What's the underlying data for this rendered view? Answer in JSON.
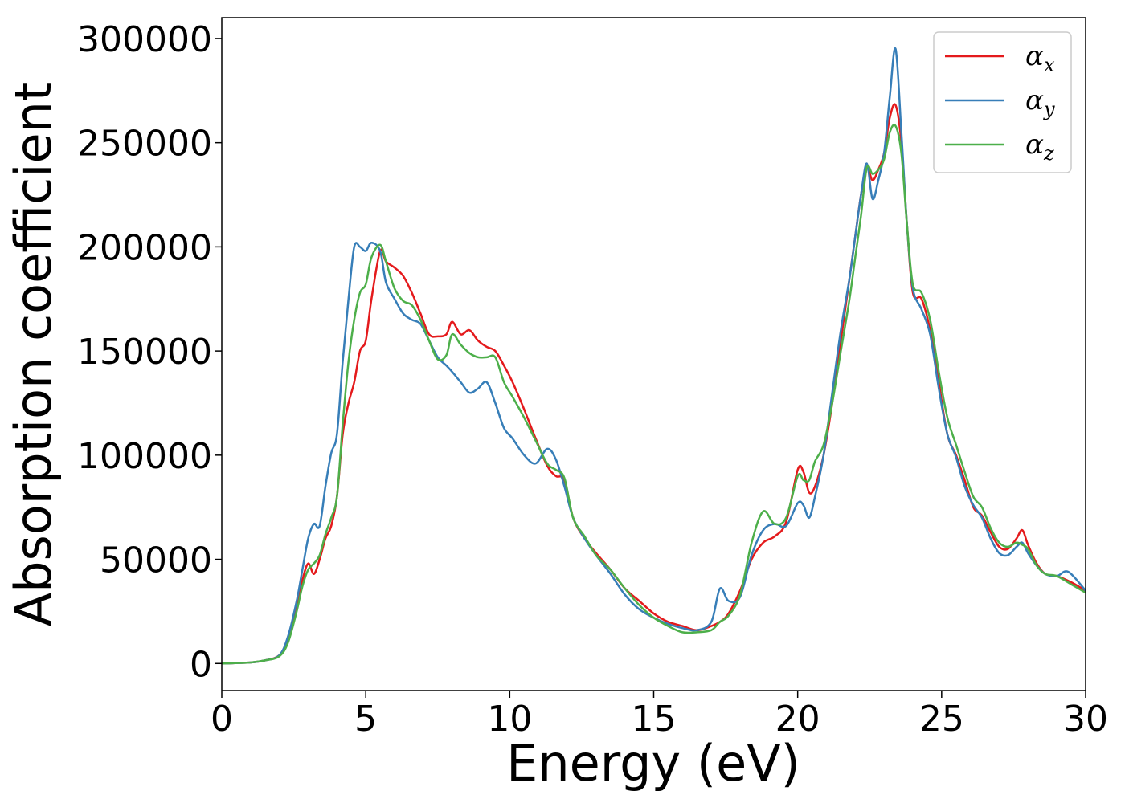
{
  "chart_data": {
    "type": "line",
    "xlabel": "Energy (eV)",
    "ylabel": "Absorption coefficient",
    "xlim": [
      0,
      30
    ],
    "ylim": [
      -13000,
      310000
    ],
    "xticks": [
      0,
      5,
      10,
      15,
      20,
      25,
      30
    ],
    "xtick_labels": [
      "0",
      "5",
      "10",
      "15",
      "20",
      "25",
      "30"
    ],
    "yticks": [
      0,
      50000,
      100000,
      150000,
      200000,
      250000,
      300000
    ],
    "ytick_labels": [
      "0",
      "50000",
      "100000",
      "150000",
      "200000",
      "250000",
      "300000"
    ],
    "grid": false,
    "legend_position": "top-right",
    "series": [
      {
        "name": "α",
        "subscript": "x",
        "color": "#e41a1c",
        "x": [
          0,
          1,
          1.5,
          2,
          2.3,
          2.6,
          2.8,
          3.0,
          3.2,
          3.4,
          3.6,
          3.8,
          4.0,
          4.2,
          4.4,
          4.6,
          4.8,
          5.0,
          5.2,
          5.5,
          5.7,
          6.0,
          6.3,
          6.6,
          6.9,
          7.2,
          7.5,
          7.8,
          8.0,
          8.3,
          8.6,
          8.9,
          9.2,
          9.5,
          9.8,
          10.1,
          10.5,
          10.9,
          11.3,
          11.6,
          11.9,
          12.2,
          12.6,
          13.0,
          13.5,
          14.0,
          14.5,
          15.0,
          15.5,
          16.0,
          16.5,
          17.0,
          17.3,
          17.6,
          18.0,
          18.4,
          18.8,
          19.2,
          19.6,
          20.0,
          20.2,
          20.4,
          20.6,
          20.9,
          21.2,
          21.5,
          21.8,
          22.0,
          22.2,
          22.4,
          22.6,
          22.8,
          23.0,
          23.2,
          23.4,
          23.6,
          23.8,
          24.0,
          24.3,
          24.6,
          24.9,
          25.2,
          25.5,
          25.8,
          26.1,
          26.4,
          26.7,
          27.0,
          27.3,
          27.6,
          27.8,
          28.0,
          28.3,
          28.6,
          29.0,
          29.5,
          30.0
        ],
        "y": [
          0,
          500,
          1500,
          4000,
          12000,
          28000,
          40000,
          48000,
          43000,
          50000,
          60000,
          66000,
          80000,
          110000,
          125000,
          135000,
          150000,
          155000,
          175000,
          198000,
          193000,
          190000,
          186000,
          178000,
          168000,
          158000,
          157000,
          158000,
          164000,
          158000,
          160000,
          155000,
          152000,
          150000,
          143000,
          135000,
          122000,
          108000,
          95000,
          90000,
          88000,
          70000,
          60000,
          53000,
          45000,
          36000,
          30000,
          24000,
          20000,
          18000,
          16000,
          18000,
          20000,
          24000,
          35000,
          50000,
          58000,
          61000,
          68000,
          93000,
          92000,
          82000,
          85000,
          100000,
          125000,
          155000,
          185000,
          205000,
          225000,
          238000,
          232000,
          237000,
          245000,
          262000,
          268000,
          250000,
          210000,
          178000,
          175000,
          160000,
          135000,
          110000,
          100000,
          88000,
          75000,
          71000,
          63000,
          56000,
          55000,
          60000,
          64000,
          57000,
          48000,
          43000,
          42000,
          39000,
          35000
        ]
      },
      {
        "name": "α",
        "subscript": "y",
        "color": "#377eb8",
        "x": [
          0,
          1,
          1.5,
          2,
          2.3,
          2.6,
          2.8,
          3.0,
          3.2,
          3.4,
          3.6,
          3.8,
          4.0,
          4.2,
          4.4,
          4.6,
          4.8,
          5.0,
          5.2,
          5.5,
          5.7,
          6.0,
          6.3,
          6.6,
          6.9,
          7.2,
          7.5,
          7.8,
          8.0,
          8.3,
          8.6,
          8.9,
          9.2,
          9.5,
          9.8,
          10.1,
          10.5,
          10.9,
          11.3,
          11.6,
          11.9,
          12.2,
          12.6,
          13.0,
          13.5,
          14.0,
          14.5,
          15.0,
          15.5,
          16.0,
          16.5,
          17.0,
          17.3,
          17.6,
          18.0,
          18.4,
          18.8,
          19.2,
          19.6,
          20.0,
          20.2,
          20.4,
          20.6,
          20.9,
          21.2,
          21.5,
          21.8,
          22.0,
          22.2,
          22.4,
          22.6,
          22.8,
          23.0,
          23.2,
          23.4,
          23.6,
          23.8,
          24.0,
          24.3,
          24.6,
          24.9,
          25.2,
          25.5,
          25.8,
          26.1,
          26.4,
          26.7,
          27.0,
          27.3,
          27.6,
          27.8,
          28.0,
          28.3,
          28.6,
          29.0,
          29.4,
          30.0
        ],
        "y": [
          0,
          500,
          1500,
          4000,
          13000,
          30000,
          45000,
          60000,
          67000,
          66000,
          85000,
          101000,
          110000,
          145000,
          175000,
          200000,
          200000,
          198000,
          202000,
          198000,
          183000,
          175000,
          168000,
          165000,
          163000,
          155000,
          147000,
          143000,
          140000,
          135000,
          130000,
          132000,
          135000,
          125000,
          113000,
          108000,
          100000,
          96000,
          103000,
          98000,
          85000,
          70000,
          60000,
          52000,
          43000,
          33000,
          26000,
          22000,
          19000,
          17000,
          16000,
          20000,
          36000,
          30000,
          32000,
          52000,
          64000,
          67000,
          66000,
          77000,
          76000,
          70000,
          80000,
          100000,
          130000,
          160000,
          185000,
          205000,
          225000,
          240000,
          223000,
          232000,
          245000,
          272000,
          295000,
          255000,
          210000,
          180000,
          170000,
          158000,
          132000,
          110000,
          99000,
          85000,
          76000,
          70000,
          60000,
          53000,
          52000,
          56000,
          58000,
          53000,
          47000,
          43000,
          42000,
          44000,
          35000
        ]
      },
      {
        "name": "α",
        "subscript": "z",
        "color": "#4daf4a",
        "x": [
          0,
          1,
          1.5,
          2,
          2.3,
          2.6,
          2.8,
          3.0,
          3.2,
          3.4,
          3.6,
          3.8,
          4.0,
          4.2,
          4.4,
          4.6,
          4.8,
          5.0,
          5.2,
          5.5,
          5.7,
          6.0,
          6.3,
          6.6,
          6.9,
          7.2,
          7.5,
          7.8,
          8.0,
          8.3,
          8.6,
          8.9,
          9.2,
          9.5,
          9.8,
          10.1,
          10.5,
          10.9,
          11.3,
          11.6,
          11.9,
          12.2,
          12.6,
          13.0,
          13.5,
          14.0,
          14.5,
          15.0,
          15.5,
          16.0,
          16.5,
          17.0,
          17.3,
          17.6,
          18.0,
          18.4,
          18.8,
          19.2,
          19.6,
          20.0,
          20.2,
          20.4,
          20.6,
          20.9,
          21.2,
          21.5,
          21.8,
          22.0,
          22.2,
          22.4,
          22.6,
          22.8,
          23.0,
          23.2,
          23.4,
          23.6,
          23.8,
          24.0,
          24.3,
          24.6,
          24.9,
          25.2,
          25.5,
          25.8,
          26.1,
          26.4,
          26.7,
          27.0,
          27.3,
          27.6,
          27.8,
          28.0,
          28.3,
          28.6,
          29.0,
          29.5,
          30.0
        ],
        "y": [
          0,
          500,
          1500,
          3500,
          10000,
          25000,
          37000,
          45000,
          48000,
          52000,
          62000,
          70000,
          80000,
          115000,
          145000,
          165000,
          178000,
          182000,
          195000,
          201000,
          193000,
          180000,
          174000,
          172000,
          165000,
          155000,
          146000,
          148000,
          158000,
          153000,
          149000,
          147000,
          147000,
          147000,
          135000,
          128000,
          118000,
          107000,
          96000,
          93000,
          89000,
          70000,
          61000,
          52000,
          45000,
          36000,
          28000,
          22000,
          18000,
          15000,
          15000,
          16000,
          20000,
          23000,
          33000,
          58000,
          73000,
          67000,
          70000,
          90000,
          88000,
          88000,
          97000,
          105000,
          125000,
          150000,
          175000,
          195000,
          215000,
          238000,
          235000,
          237000,
          242000,
          255000,
          258000,
          245000,
          210000,
          182000,
          178000,
          165000,
          140000,
          118000,
          105000,
          92000,
          80000,
          75000,
          65000,
          58000,
          56000,
          58000,
          57000,
          55000,
          47000,
          43000,
          42000,
          38000,
          34000
        ]
      }
    ]
  }
}
